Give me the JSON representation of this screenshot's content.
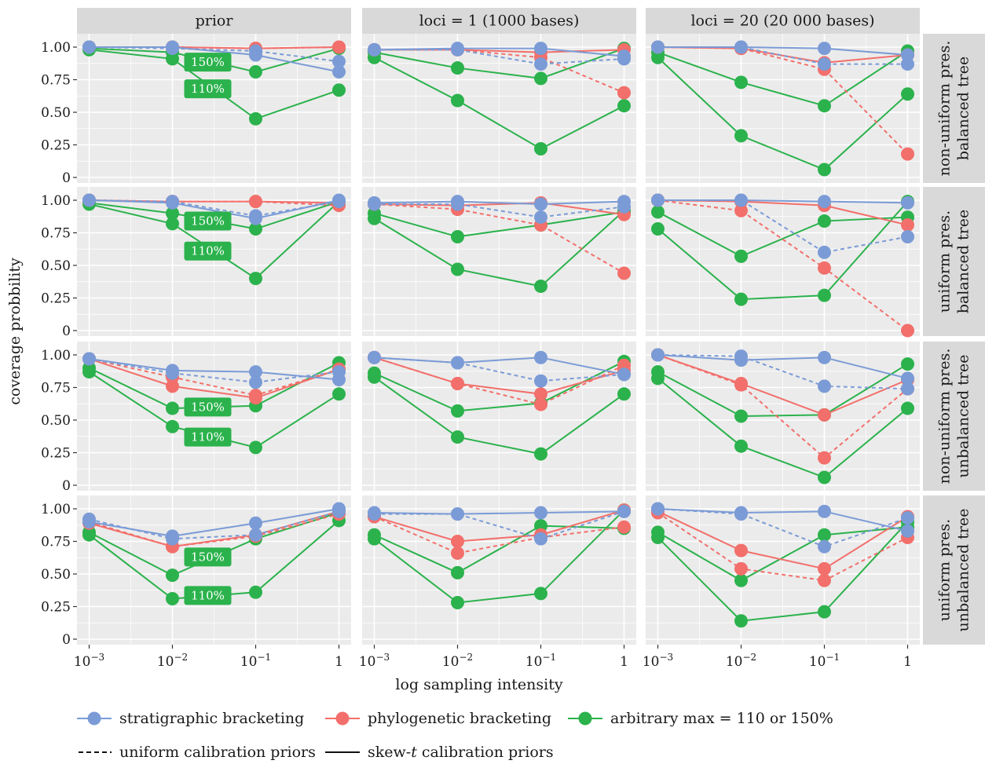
{
  "colors": {
    "stratigraphic": "#7b9bd6",
    "phylogenetic": "#f26f6b",
    "arbitrary": "#2bb24c",
    "panel_bg": "#ebebeb",
    "strip_bg": "#d9d9d9",
    "grid": "#ffffff"
  },
  "legend": {
    "stratigraphic": "stratigraphic bracketing",
    "phylogenetic": "phylogenetic bracketing",
    "arbitrary": "arbitrary max = 110 or 150%",
    "uniform": "uniform calibration priors",
    "skew_prefix": "skew-",
    "skew_italic": "t",
    "skew_suffix": " calibration priors"
  },
  "chart_data": {
    "type": "line",
    "xlabel": "log sampling intensity",
    "ylabel": "coverage probbility",
    "x": [
      0.001,
      0.01,
      0.1,
      1
    ],
    "x_tick_base": "10",
    "x_tick_exponents": [
      "−3",
      "−2",
      "−1",
      ""
    ],
    "x_tick_plain": [
      "",
      "",
      "",
      "1"
    ],
    "x_scale": "log",
    "ylim": [
      0,
      1
    ],
    "y_ticks": [
      "0",
      "0.25",
      "0.50",
      "0.75",
      "1.00"
    ],
    "y_tick_values": [
      0,
      0.25,
      0.5,
      0.75,
      1.0
    ],
    "grid": true,
    "legend_position": "bottom",
    "columns": [
      "prior",
      "loci = 1 (1000 bases)",
      "loci = 20 (20 000 bases)"
    ],
    "rows": [
      [
        "non-uniform pres.",
        "balanced tree"
      ],
      [
        "uniform pres.",
        "balanced tree"
      ],
      [
        "non-uniform pres.",
        "unbalanced tree"
      ],
      [
        "uniform pres.",
        "unbalanced tree"
      ]
    ],
    "tags": [
      "150%",
      "110%"
    ],
    "panels": [
      [
        {
          "strat_u": [
            1.0,
            0.99,
            0.97,
            0.89
          ],
          "strat_s": [
            1.0,
            1.0,
            0.94,
            0.81
          ],
          "phylo_u": [
            1.0,
            1.0,
            0.99,
            1.0
          ],
          "phylo_s": [
            1.0,
            1.0,
            0.99,
            1.0
          ],
          "arb150": [
            0.99,
            0.96,
            0.81,
            0.99
          ],
          "arb110": [
            0.98,
            0.91,
            0.45,
            0.67
          ]
        },
        {
          "strat_u": [
            0.98,
            0.98,
            0.87,
            0.91
          ],
          "strat_s": [
            0.98,
            0.99,
            0.99,
            0.93
          ],
          "phylo_u": [
            0.98,
            0.98,
            0.92,
            0.65
          ],
          "phylo_s": [
            0.98,
            0.98,
            0.96,
            0.98
          ],
          "arb150": [
            0.96,
            0.84,
            0.76,
            0.99
          ],
          "arb110": [
            0.92,
            0.59,
            0.22,
            0.55
          ]
        },
        {
          "strat_u": [
            1.0,
            1.0,
            0.87,
            0.87
          ],
          "strat_s": [
            1.0,
            1.0,
            0.99,
            0.94
          ],
          "phylo_u": [
            1.0,
            0.99,
            0.83,
            0.18
          ],
          "phylo_s": [
            1.0,
            0.99,
            0.88,
            0.94
          ],
          "arb150": [
            0.96,
            0.73,
            0.55,
            0.97
          ],
          "arb110": [
            0.92,
            0.32,
            0.06,
            0.64
          ]
        }
      ],
      [
        {
          "strat_u": [
            1.0,
            0.99,
            0.88,
            0.99
          ],
          "strat_s": [
            1.0,
            0.98,
            0.86,
            1.0
          ],
          "phylo_u": [
            1.0,
            0.99,
            0.99,
            0.96
          ],
          "phylo_s": [
            1.0,
            0.99,
            0.99,
            0.98
          ],
          "arb150": [
            0.98,
            0.9,
            0.78,
            0.99
          ],
          "arb110": [
            0.97,
            0.82,
            0.4,
            0.99
          ]
        },
        {
          "strat_u": [
            0.97,
            0.97,
            0.87,
            0.95
          ],
          "strat_s": [
            0.98,
            0.99,
            0.97,
            0.99
          ],
          "phylo_u": [
            0.97,
            0.93,
            0.81,
            0.44
          ],
          "phylo_s": [
            0.97,
            0.96,
            0.98,
            0.89
          ],
          "arb150": [
            0.9,
            0.72,
            0.81,
            0.91
          ],
          "arb110": [
            0.86,
            0.47,
            0.34,
            0.92
          ]
        },
        {
          "strat_u": [
            1.0,
            1.0,
            0.6,
            0.72
          ],
          "strat_s": [
            1.0,
            1.0,
            0.99,
            0.98
          ],
          "phylo_u": [
            1.0,
            0.92,
            0.48,
            0.0
          ],
          "phylo_s": [
            1.0,
            0.99,
            0.96,
            0.81
          ],
          "arb150": [
            0.91,
            0.57,
            0.84,
            0.87
          ],
          "arb110": [
            0.78,
            0.24,
            0.27,
            0.99
          ]
        }
      ],
      [
        {
          "strat_u": [
            0.97,
            0.86,
            0.79,
            0.87
          ],
          "strat_s": [
            0.97,
            0.88,
            0.87,
            0.81
          ],
          "phylo_u": [
            0.97,
            0.83,
            0.69,
            0.89
          ],
          "phylo_s": [
            0.97,
            0.76,
            0.67,
            0.89
          ],
          "arb150": [
            0.9,
            0.59,
            0.61,
            0.94
          ],
          "arb110": [
            0.87,
            0.45,
            0.29,
            0.7
          ]
        },
        {
          "strat_u": [
            0.98,
            0.94,
            0.8,
            0.85
          ],
          "strat_s": [
            0.98,
            0.94,
            0.98,
            0.85
          ],
          "phylo_u": [
            0.98,
            0.78,
            0.62,
            0.92
          ],
          "phylo_s": [
            0.98,
            0.78,
            0.7,
            0.88
          ],
          "arb150": [
            0.86,
            0.57,
            0.63,
            0.95
          ],
          "arb110": [
            0.83,
            0.37,
            0.24,
            0.7
          ]
        },
        {
          "strat_u": [
            1.0,
            0.99,
            0.76,
            0.74
          ],
          "strat_s": [
            1.0,
            0.96,
            0.98,
            0.82
          ],
          "phylo_u": [
            1.0,
            0.77,
            0.21,
            0.74
          ],
          "phylo_s": [
            1.0,
            0.78,
            0.54,
            0.81
          ],
          "arb150": [
            0.87,
            0.53,
            0.54,
            0.93
          ],
          "arb110": [
            0.82,
            0.3,
            0.06,
            0.59
          ]
        }
      ],
      [
        {
          "strat_u": [
            0.92,
            0.77,
            0.8,
            0.98
          ],
          "strat_s": [
            0.9,
            0.79,
            0.89,
            1.0
          ],
          "phylo_u": [
            0.9,
            0.71,
            0.79,
            0.96
          ],
          "phylo_s": [
            0.89,
            0.71,
            0.8,
            0.98
          ],
          "arb150": [
            0.82,
            0.49,
            0.77,
            0.97
          ],
          "arb110": [
            0.8,
            0.31,
            0.36,
            0.91
          ]
        },
        {
          "strat_u": [
            0.96,
            0.96,
            0.77,
            0.98
          ],
          "strat_s": [
            0.97,
            0.96,
            0.97,
            0.98
          ],
          "phylo_u": [
            0.94,
            0.66,
            0.78,
            0.86
          ],
          "phylo_s": [
            0.94,
            0.75,
            0.8,
            0.99
          ],
          "arb150": [
            0.8,
            0.51,
            0.87,
            0.85
          ],
          "arb110": [
            0.77,
            0.28,
            0.35,
            0.99
          ]
        },
        {
          "strat_u": [
            1.0,
            0.96,
            0.71,
            0.93
          ],
          "strat_s": [
            1.0,
            0.97,
            0.98,
            0.83
          ],
          "phylo_u": [
            0.97,
            0.54,
            0.45,
            0.78
          ],
          "phylo_s": [
            0.98,
            0.68,
            0.54,
            0.94
          ],
          "arb150": [
            0.82,
            0.45,
            0.8,
            0.86
          ],
          "arb110": [
            0.78,
            0.14,
            0.21,
            0.9
          ]
        }
      ]
    ]
  }
}
